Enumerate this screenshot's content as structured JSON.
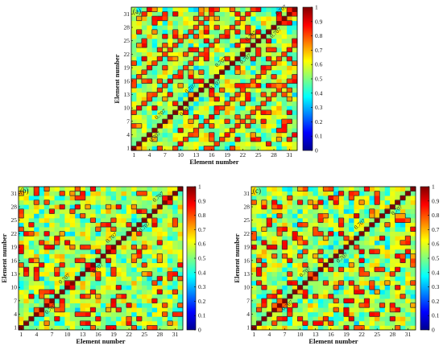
{
  "chart_data": [
    {
      "type": "heatmap",
      "panel": "(a)",
      "xlabel": "Element number",
      "ylabel": "Element number",
      "xticks": [
        "1",
        "4",
        "7",
        "10",
        "13",
        "16",
        "19",
        "22",
        "25",
        "28",
        "31"
      ],
      "yticks": [
        "1",
        "4",
        "7",
        "10",
        "13",
        "16",
        "19",
        "22",
        "25",
        "28",
        "31"
      ],
      "xlim": [
        1,
        32
      ],
      "ylim": [
        1,
        32
      ],
      "colorbar": {
        "ticks": [
          "0",
          "0.1",
          "0.2",
          "0.3",
          "0.4",
          "0.5",
          "0.6",
          "0.7",
          "0.8",
          "0.9",
          "1"
        ],
        "range": [
          0,
          1
        ]
      },
      "contour_level": 0.707,
      "contour_labels": [
        "0.707",
        "0.707",
        "0.707",
        "0.707",
        "0.707",
        "0.707",
        "0.707",
        "0.707",
        "0.707",
        "0.707"
      ],
      "diagonal_value": 1.0,
      "off_diagonal_bands": [
        8,
        -8,
        15,
        -15
      ],
      "background_mean": 0.55
    },
    {
      "type": "heatmap",
      "panel": "(b)",
      "xlabel": "Element number",
      "ylabel": "Element number",
      "xticks": [
        "1",
        "4",
        "7",
        "10",
        "13",
        "16",
        "19",
        "22",
        "25",
        "28",
        "31"
      ],
      "yticks": [
        "1",
        "4",
        "7",
        "10",
        "13",
        "16",
        "19",
        "22",
        "25",
        "28",
        "31"
      ],
      "xlim": [
        1,
        32
      ],
      "ylim": [
        1,
        32
      ],
      "colorbar": {
        "ticks": [
          "0",
          "0.1",
          "0.2",
          "0.3",
          "0.4",
          "0.5",
          "0.6",
          "0.7",
          "0.8",
          "0.9",
          "1"
        ],
        "range": [
          0,
          1
        ]
      },
      "contour_level": 0.707,
      "contour_labels": [
        "0.707",
        "0.707",
        "0.707",
        "0.707",
        "0.707",
        "0.707"
      ],
      "diagonal_value": 1.0,
      "off_diagonal_bands": [],
      "background_mean": 0.55
    },
    {
      "type": "heatmap",
      "panel": "(c)",
      "xlabel": "Element number",
      "ylabel": "Element number",
      "xticks": [
        "1",
        "4",
        "7",
        "10",
        "13",
        "16",
        "19",
        "22",
        "25",
        "28",
        "31"
      ],
      "yticks": [
        "1",
        "4",
        "7",
        "10",
        "13",
        "16",
        "19",
        "22",
        "25",
        "28",
        "31"
      ],
      "xlim": [
        1,
        32
      ],
      "ylim": [
        1,
        32
      ],
      "colorbar": {
        "ticks": [
          "0",
          "0.1",
          "0.2",
          "0.3",
          "0.4",
          "0.5",
          "0.6",
          "0.7",
          "0.8",
          "0.9",
          "1"
        ],
        "range": [
          0,
          1
        ]
      },
      "contour_level": 0.707,
      "contour_labels": [
        "0.707",
        "0.707",
        "0.707",
        "0.707",
        "0.707"
      ],
      "diagonal_value": 1.0,
      "off_diagonal_bands": [],
      "background_mean": 0.55
    }
  ]
}
